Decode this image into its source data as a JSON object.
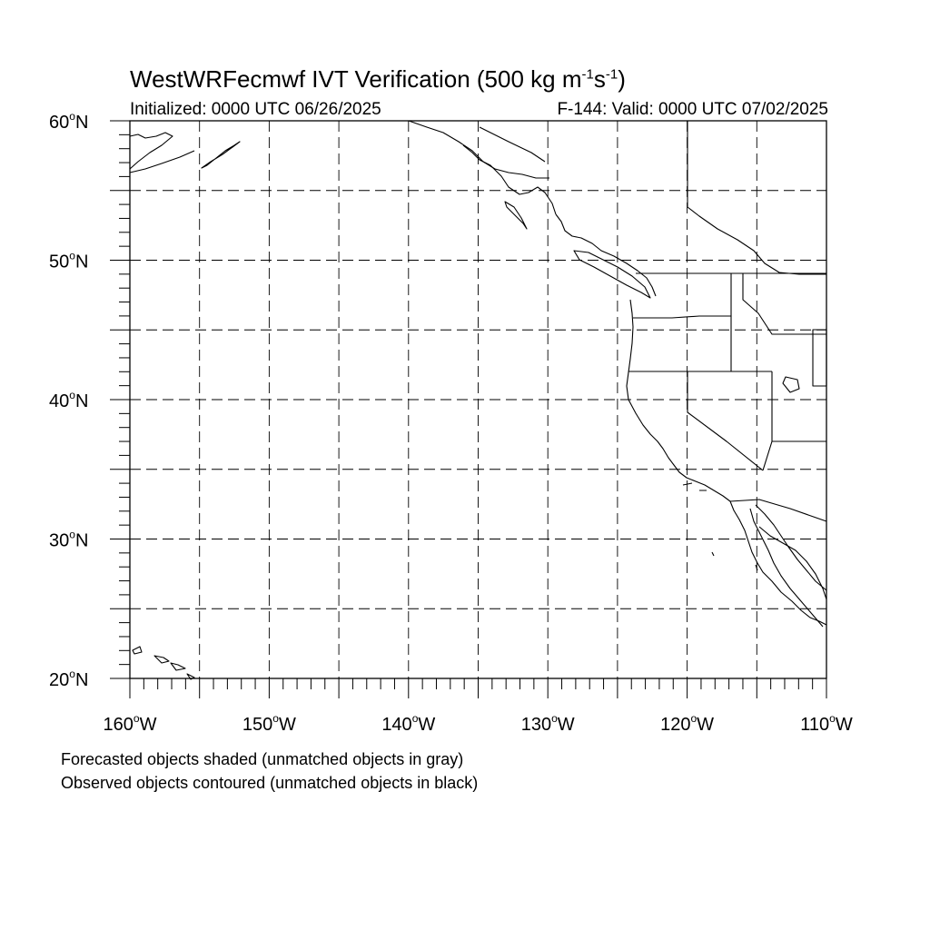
{
  "title": {
    "text_before": "WestWRFecmwf IVT Verification (500 kg m",
    "sup1": "-1",
    "text_mid": "s",
    "sup2": "-1",
    "text_after": ")"
  },
  "initialized": "Initialized: 0000 UTC 06/26/2025",
  "valid": "F-144: Valid: 0000 UTC 07/02/2025",
  "notes": [
    "Forecasted objects shaded (unmatched objects in gray)",
    "Observed objects contoured (unmatched objects in black)"
  ],
  "map": {
    "lat_labels": [
      {
        "deg": "60",
        "hemi": "N",
        "lat": 60
      },
      {
        "deg": "50",
        "hemi": "N",
        "lat": 50
      },
      {
        "deg": "40",
        "hemi": "N",
        "lat": 40
      },
      {
        "deg": "30",
        "hemi": "N",
        "lat": 30
      },
      {
        "deg": "20",
        "hemi": "N",
        "lat": 20
      }
    ],
    "lon_labels": [
      {
        "deg": "160",
        "hemi": "W",
        "lon": -160
      },
      {
        "deg": "150",
        "hemi": "W",
        "lon": -150
      },
      {
        "deg": "140",
        "hemi": "W",
        "lon": -140
      },
      {
        "deg": "130",
        "hemi": "W",
        "lon": -130
      },
      {
        "deg": "120",
        "hemi": "W",
        "lon": -120
      },
      {
        "deg": "110",
        "hemi": "W",
        "lon": -110
      }
    ],
    "lon_range": [
      -160,
      -110
    ],
    "lat_range": [
      20,
      60
    ],
    "gridline_spacing_deg": 5,
    "gridline_style": "dashed",
    "observed_object_color": "#000000"
  }
}
